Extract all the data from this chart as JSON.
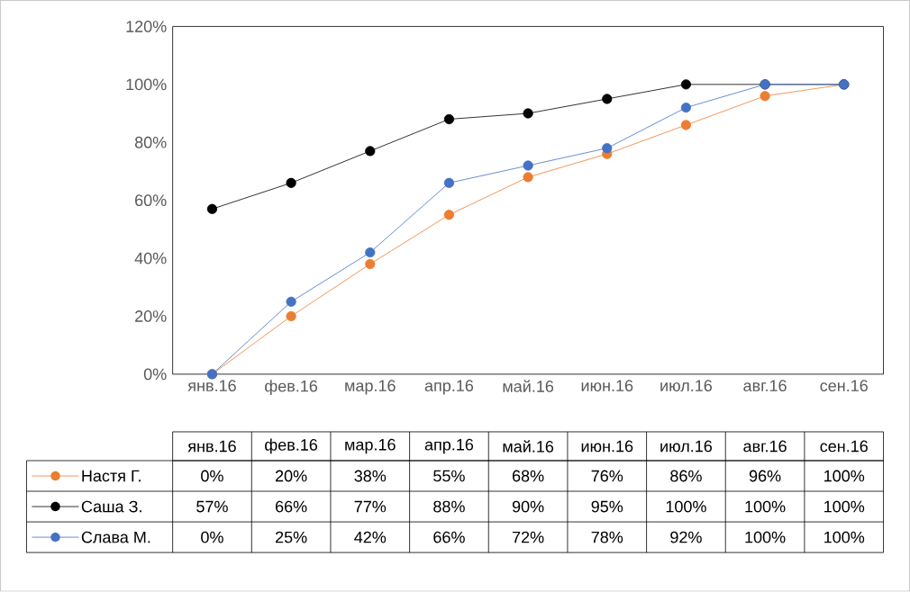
{
  "chart_data": {
    "type": "line",
    "categories": [
      "янв.16",
      "фев.16",
      "мар.16",
      "апр.16",
      "май.16",
      "июн.16",
      "июл.16",
      "авг.16",
      "сен.16"
    ],
    "series": [
      {
        "name": "Настя Г.",
        "color": "#ed7d31",
        "values": [
          0,
          20,
          38,
          55,
          68,
          76,
          86,
          96,
          100
        ],
        "value_labels": [
          "0%",
          "20%",
          "38%",
          "55%",
          "68%",
          "76%",
          "86%",
          "96%",
          "100%"
        ]
      },
      {
        "name": "Саша З.",
        "color": "#000000",
        "values": [
          57,
          66,
          77,
          88,
          90,
          95,
          100,
          100,
          100
        ],
        "value_labels": [
          "57%",
          "66%",
          "77%",
          "88%",
          "90%",
          "95%",
          "100%",
          "100%",
          "100%"
        ]
      },
      {
        "name": "Слава М.",
        "color": "#4472c4",
        "values": [
          0,
          25,
          42,
          66,
          72,
          78,
          92,
          100,
          100
        ],
        "value_labels": [
          "0%",
          "25%",
          "42%",
          "66%",
          "72%",
          "78%",
          "92%",
          "100%",
          "100%"
        ]
      }
    ],
    "ylim": [
      0,
      120
    ],
    "yticks": [
      {
        "value": 0,
        "label": "0%"
      },
      {
        "value": 20,
        "label": "20%"
      },
      {
        "value": 40,
        "label": "40%"
      },
      {
        "value": 60,
        "label": "60%"
      },
      {
        "value": 80,
        "label": "80%"
      },
      {
        "value": 100,
        "label": "100%"
      },
      {
        "value": 120,
        "label": "120%"
      }
    ],
    "grid": false,
    "legend": "bottom",
    "marker": "circle",
    "line_style": "solid"
  }
}
